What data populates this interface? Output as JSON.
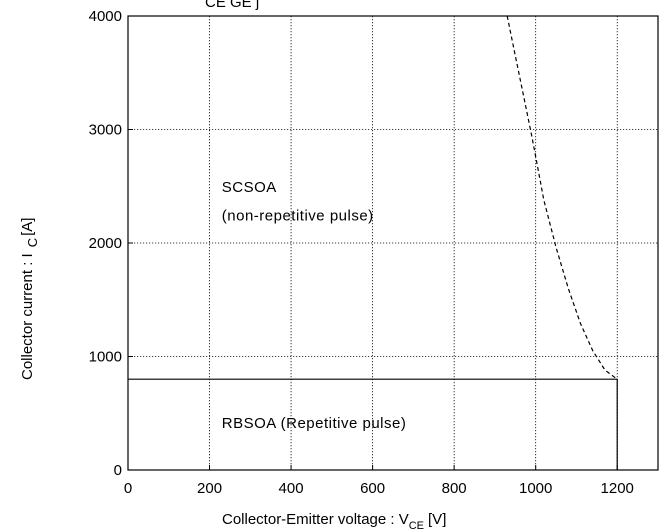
{
  "chart_data": {
    "type": "line",
    "title_fragment": "CE      GE       j",
    "xlabel": "Collector-Emitter voltage : V",
    "xlabel_sub": "CE",
    "xlabel_unit": "[V]",
    "ylabel": "Collector current : I",
    "ylabel_sub": "C",
    "ylabel_unit": "[A]",
    "xlim": [
      0,
      1300
    ],
    "ylim": [
      0,
      4000
    ],
    "xticks": [
      0,
      200,
      400,
      600,
      800,
      1000,
      1200
    ],
    "yticks": [
      0,
      1000,
      2000,
      3000,
      4000
    ],
    "grid": true,
    "series": [
      {
        "name": "SCSOA",
        "style": "dashed",
        "x": [
          930,
          950,
          970,
          990,
          1000,
          1020,
          1050,
          1080,
          1110,
          1140,
          1170,
          1200
        ],
        "y": [
          4000,
          3650,
          3300,
          2950,
          2760,
          2380,
          1960,
          1600,
          1290,
          1050,
          880,
          800
        ]
      },
      {
        "name": "RBSOA",
        "style": "solid",
        "x": [
          0,
          1200,
          1200
        ],
        "y": [
          800,
          800,
          0
        ]
      }
    ],
    "annotations": [
      {
        "text": "SCSOA",
        "x": 230,
        "y": 2450
      },
      {
        "text": "(non-repetitive pulse)",
        "x": 230,
        "y": 2200
      },
      {
        "text": "RBSOA (Repetitive pulse)",
        "x": 230,
        "y": 370
      }
    ]
  }
}
